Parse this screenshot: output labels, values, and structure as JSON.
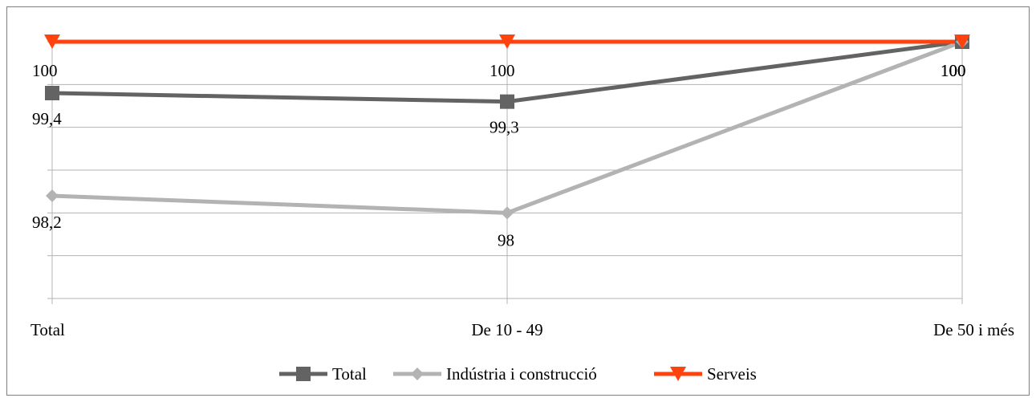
{
  "chart_data": {
    "type": "line",
    "categories": [
      "Total",
      "De 10 - 49",
      "De 50 i més"
    ],
    "series": [
      {
        "name": "Total",
        "values": [
          99.4,
          99.3,
          100
        ],
        "color": "#636363",
        "marker": "square"
      },
      {
        "name": "Indústria i construcció",
        "values": [
          98.2,
          98,
          100
        ],
        "color": "#b3b3b3",
        "marker": "diamond"
      },
      {
        "name": "Serveis",
        "values": [
          100,
          100,
          100
        ],
        "color": "#ff420e",
        "marker": "triangle-down"
      }
    ],
    "data_labels": [
      [
        "99,4",
        "99,3",
        "100"
      ],
      [
        "98,2",
        "98",
        "100"
      ],
      [
        "100",
        "100",
        "100"
      ]
    ],
    "title": "",
    "xlabel": "",
    "ylabel": "",
    "ylim": [
      97.0,
      100.0
    ],
    "grid": true,
    "legend_position": "bottom"
  }
}
